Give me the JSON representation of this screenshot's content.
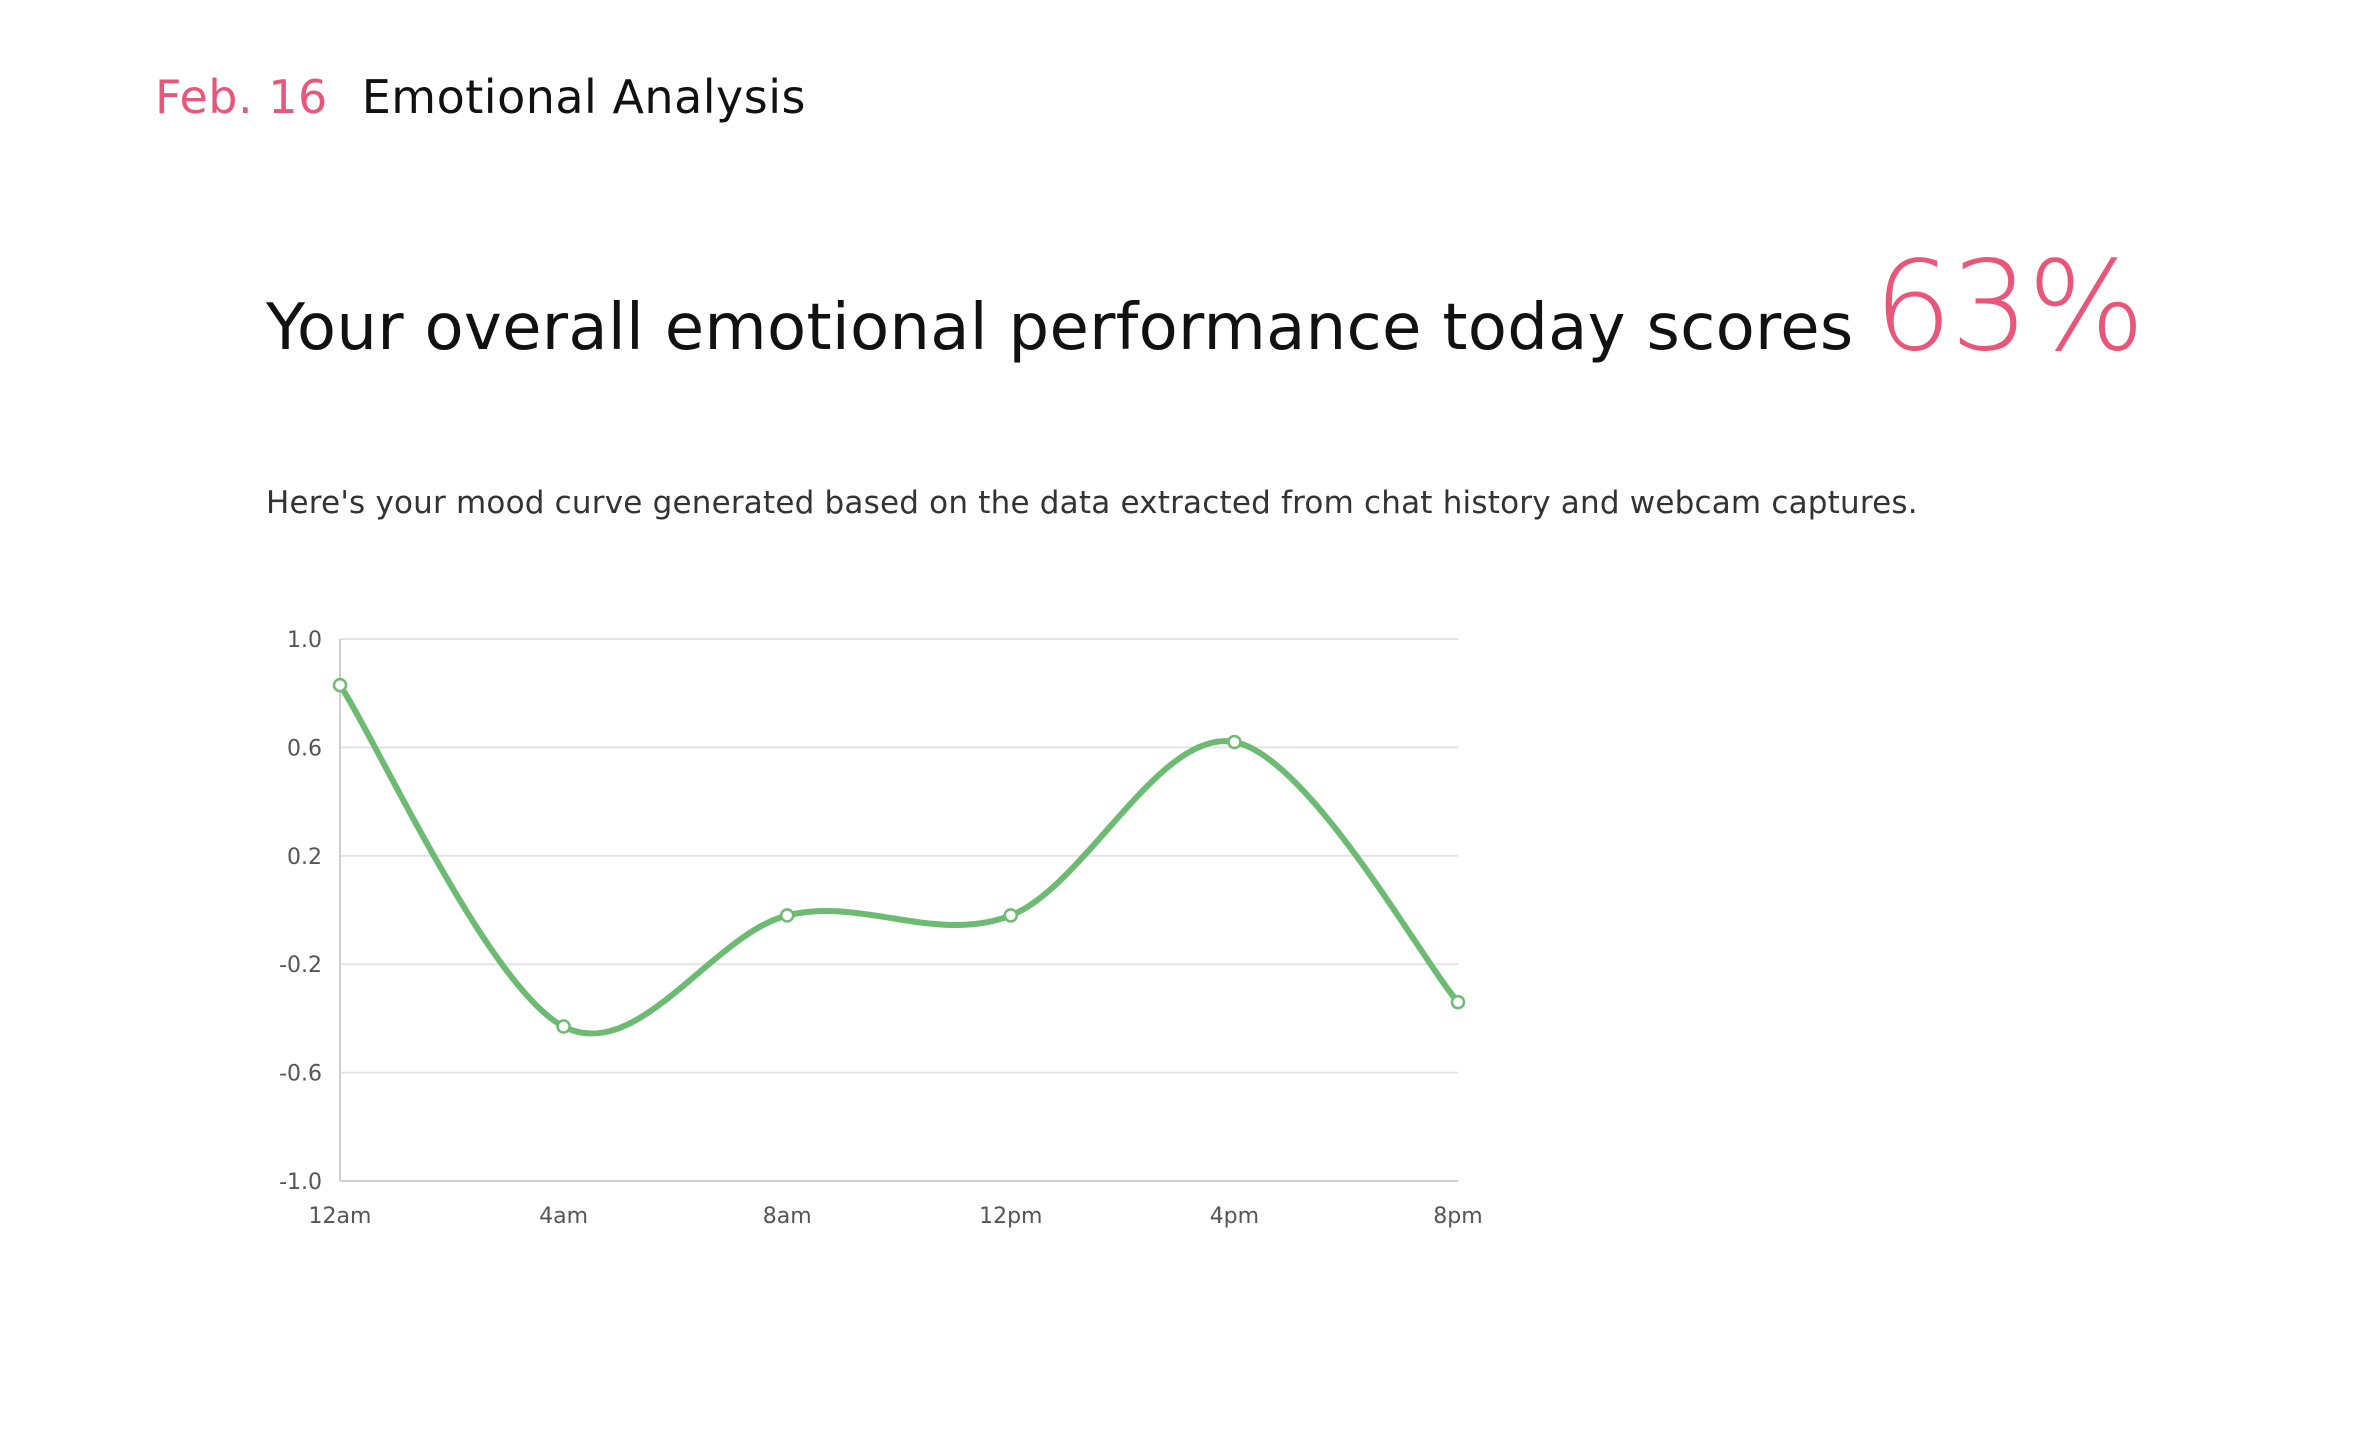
{
  "header": {
    "date": "Feb. 16",
    "title": "Emotional Analysis"
  },
  "headline": {
    "text": "Your overall emotional performance today scores",
    "score": "63%"
  },
  "subtitle": "Here's your mood curve generated based on the data extracted from chat history and webcam captures.",
  "colors": {
    "accent": "#e8567a",
    "line": "#6dbb72",
    "text": "#111111"
  },
  "chart_data": {
    "type": "line",
    "title": "",
    "xlabel": "",
    "ylabel": "",
    "categories": [
      "12am",
      "4am",
      "8am",
      "12pm",
      "4pm",
      "8pm"
    ],
    "series": [
      {
        "values": [
          0.83,
          -0.43,
          -0.02,
          -0.02,
          0.62,
          -0.34
        ]
      }
    ],
    "ylim": [
      -1.0,
      1.0
    ],
    "yticks": [
      "1.0",
      "0.6",
      "0.2",
      "-0.2",
      "-0.6",
      "-1.0"
    ],
    "ytick_values": [
      1.0,
      0.6,
      0.2,
      -0.2,
      -0.6,
      -1.0
    ],
    "grid": true,
    "legend": "none",
    "curve": "smooth"
  }
}
